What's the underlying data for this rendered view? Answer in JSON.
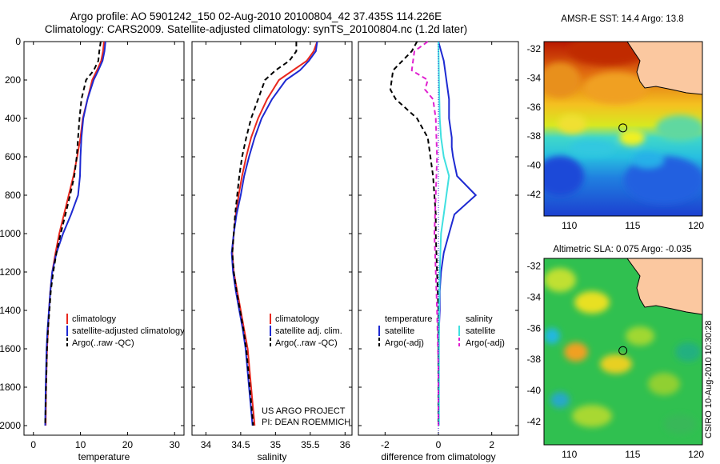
{
  "title_line1": "Argo profile: AO 5901242_150 02-Aug-2010 20100804_42 37.435S 114.226E",
  "title_line2": "Climatology: CARS2009. Satellite-adjusted climatology: synTS_20100804.nc (1.2d later)",
  "credit": "CSIRO 10-Aug-2010 10:30:28",
  "colors": {
    "climatology": "#e8281e",
    "satellite": "#1e2ad2",
    "argo": "#000000",
    "satellite_salinity": "#40e0e0",
    "argo_salinity": "#e020d0",
    "land": "#fbc8a0"
  },
  "chart_data": [
    {
      "type": "line",
      "panel": "temperature",
      "xlabel": "temperature",
      "ylabel": "",
      "xlim": [
        -2,
        32
      ],
      "ylim": [
        2050,
        0
      ],
      "y_inverted": true,
      "xticks": [
        0,
        10,
        20,
        30
      ],
      "yticks": [
        0,
        200,
        400,
        600,
        800,
        1000,
        1200,
        1400,
        1600,
        1800,
        2000
      ],
      "legend": [
        "climatology",
        "satellite-adjusted climatology",
        "Argo(..raw -QC)"
      ],
      "series": [
        {
          "name": "climatology",
          "color": "#e8281e",
          "style": "solid",
          "x": [
            15.0,
            14.8,
            14.4,
            13.5,
            12.5,
            11.5,
            10.5,
            10.0,
            9.3,
            8.5,
            7.5,
            6.5,
            5.5,
            4.7,
            4.0,
            3.6,
            3.3,
            3.1,
            2.9,
            2.7,
            2.6
          ],
          "y": [
            0,
            50,
            100,
            150,
            200,
            300,
            400,
            500,
            600,
            700,
            800,
            900,
            1000,
            1100,
            1200,
            1300,
            1400,
            1500,
            1600,
            1800,
            2000
          ]
        },
        {
          "name": "satellite-adjusted climatology",
          "color": "#1e2ad2",
          "style": "solid",
          "x": [
            15.3,
            15.1,
            14.7,
            13.8,
            12.8,
            11.5,
            10.6,
            10.2,
            10.0,
            9.9,
            9.5,
            8.0,
            6.3,
            4.9,
            4.0,
            3.6,
            3.3,
            3.0,
            2.8,
            2.6,
            2.5
          ],
          "y": [
            0,
            50,
            100,
            150,
            200,
            300,
            400,
            500,
            600,
            700,
            800,
            900,
            1000,
            1100,
            1200,
            1300,
            1400,
            1500,
            1600,
            1800,
            2000
          ]
        },
        {
          "name": "Argo(..raw -QC)",
          "color": "#000000",
          "style": "dashed",
          "x": [
            14.3,
            14.0,
            13.8,
            12.8,
            11.2,
            10.2,
            9.8,
            9.5,
            9.2,
            8.7,
            7.8,
            6.8,
            5.8,
            4.9,
            4.2,
            3.7,
            3.4,
            3.1,
            2.9,
            2.7,
            2.5
          ],
          "y": [
            0,
            50,
            100,
            150,
            200,
            300,
            400,
            500,
            600,
            700,
            800,
            900,
            1000,
            1100,
            1200,
            1300,
            1400,
            1500,
            1600,
            1800,
            2000
          ]
        }
      ]
    },
    {
      "type": "line",
      "panel": "salinity",
      "xlabel": "salinity",
      "ylabel": "",
      "xlim": [
        33.8,
        36.1
      ],
      "ylim": [
        2050,
        0
      ],
      "y_inverted": true,
      "xticks": [
        34,
        34.5,
        35,
        35.5,
        36
      ],
      "legend": [
        "climatology",
        "satellite adj. clim.",
        "Argo(..raw -QC)"
      ],
      "annotations": [
        "US ARGO PROJECT",
        "PI: DEAN ROEMMICH"
      ],
      "series": [
        {
          "name": "climatology",
          "color": "#e8281e",
          "style": "solid",
          "x": [
            35.6,
            35.55,
            35.45,
            35.25,
            35.05,
            34.88,
            34.75,
            34.65,
            34.58,
            34.52,
            34.47,
            34.43,
            34.4,
            34.38,
            34.4,
            34.45,
            34.5,
            34.55,
            34.6,
            34.65,
            34.7
          ],
          "y": [
            0,
            50,
            100,
            150,
            200,
            300,
            400,
            500,
            600,
            700,
            800,
            900,
            1000,
            1100,
            1200,
            1300,
            1400,
            1500,
            1600,
            1800,
            2000
          ]
        },
        {
          "name": "satellite adj. clim.",
          "color": "#1e2ad2",
          "style": "solid",
          "x": [
            35.6,
            35.58,
            35.48,
            35.35,
            35.15,
            34.95,
            34.8,
            34.7,
            34.62,
            34.55,
            34.5,
            34.44,
            34.4,
            34.37,
            34.39,
            34.43,
            34.48,
            34.53,
            34.57,
            34.62,
            34.67
          ],
          "y": [
            0,
            50,
            100,
            150,
            200,
            300,
            400,
            500,
            600,
            700,
            800,
            900,
            1000,
            1100,
            1200,
            1300,
            1400,
            1500,
            1600,
            1800,
            2000
          ]
        },
        {
          "name": "Argo(..raw -QC)",
          "color": "#000000",
          "style": "dashed",
          "x": [
            35.3,
            35.3,
            35.2,
            35.0,
            34.85,
            34.75,
            34.65,
            34.58,
            34.52,
            34.48,
            34.45,
            34.42,
            34.4,
            34.38,
            34.4,
            34.44,
            34.49,
            34.54,
            34.58,
            34.63,
            34.68
          ],
          "y": [
            0,
            50,
            100,
            150,
            200,
            300,
            400,
            500,
            600,
            700,
            800,
            900,
            1000,
            1100,
            1200,
            1300,
            1400,
            1500,
            1600,
            1800,
            2000
          ]
        }
      ]
    },
    {
      "type": "line",
      "panel": "difference",
      "xlabel": "difference from climatology",
      "ylabel": "",
      "xlim": [
        -3,
        3
      ],
      "ylim": [
        2050,
        0
      ],
      "y_inverted": true,
      "xticks": [
        -2,
        0,
        2
      ],
      "legend_groups": [
        {
          "heading": "temperature",
          "items": [
            "satellite",
            "Argo(-adj)"
          ]
        },
        {
          "heading": "salinity",
          "items": [
            "satellite",
            "Argo(-adj)"
          ]
        }
      ],
      "series": [
        {
          "name": "temperature satellite",
          "color": "#1e2ad2",
          "style": "solid",
          "x": [
            0.0,
            0.2,
            0.3,
            0.4,
            0.4,
            0.5,
            0.5,
            0.55,
            0.7,
            1.4,
            0.6,
            0.4,
            0.2,
            0.1,
            0.05,
            0.05,
            0.02,
            0.0,
            0.0,
            0.0
          ],
          "y": [
            0,
            100,
            200,
            300,
            400,
            500,
            550,
            600,
            700,
            800,
            900,
            1000,
            1100,
            1200,
            1300,
            1400,
            1500,
            1600,
            1800,
            2000
          ]
        },
        {
          "name": "temperature Argo(-adj)",
          "color": "#000000",
          "style": "dashed",
          "x": [
            -0.8,
            -1.0,
            -1.7,
            -1.8,
            -1.6,
            -0.8,
            -0.4,
            -0.3,
            -0.2,
            -0.15,
            -0.1,
            -0.1,
            -0.05,
            0.0,
            0.0,
            0.0
          ],
          "y": [
            0,
            50,
            150,
            250,
            300,
            400,
            500,
            600,
            700,
            800,
            900,
            1000,
            1200,
            1400,
            1600,
            2000
          ]
        },
        {
          "name": "salinity satellite",
          "color": "#40e0e0",
          "style": "solid",
          "x": [
            0.0,
            0.02,
            0.05,
            0.1,
            0.2,
            0.4,
            0.3,
            0.2,
            0.1,
            0.05,
            0.03,
            0.02,
            0.02,
            0.02
          ],
          "y": [
            0,
            200,
            400,
            500,
            600,
            700,
            800,
            900,
            1000,
            1200,
            1400,
            1600,
            1800,
            2000
          ]
        },
        {
          "name": "salinity Argo(-adj)",
          "color": "#e020d0",
          "style": "dashed",
          "x": [
            -0.4,
            -0.9,
            -1.0,
            -0.4,
            -0.5,
            -0.2,
            -0.1,
            -0.05,
            -0.1,
            -0.15,
            -0.1,
            -0.05,
            0.0,
            0.0
          ],
          "y": [
            0,
            50,
            150,
            200,
            250,
            300,
            400,
            600,
            800,
            1000,
            1200,
            1400,
            1700,
            2000
          ]
        }
      ]
    },
    {
      "type": "heatmap",
      "panel": "sst_map",
      "title": "AMSR-E SST: 14.4 Argo: 13.8",
      "xlim": [
        108,
        120.5
      ],
      "ylim": [
        -43.5,
        -31.5
      ],
      "xticks": [
        110,
        115,
        120
      ],
      "yticks": [
        -32,
        -34,
        -36,
        -38,
        -40,
        -42
      ],
      "float_position": {
        "lon": 114.226,
        "lat": -37.435
      }
    },
    {
      "type": "heatmap",
      "panel": "sla_map",
      "title": "Altimetric SLA: 0.075 Argo: -0.035",
      "xlim": [
        108,
        120.5
      ],
      "ylim": [
        -43.5,
        -31.5
      ],
      "xticks": [
        110,
        115,
        120
      ],
      "yticks": [
        -32,
        -34,
        -36,
        -38,
        -40,
        -42
      ],
      "float_position": {
        "lon": 114.226,
        "lat": -37.435
      }
    }
  ]
}
